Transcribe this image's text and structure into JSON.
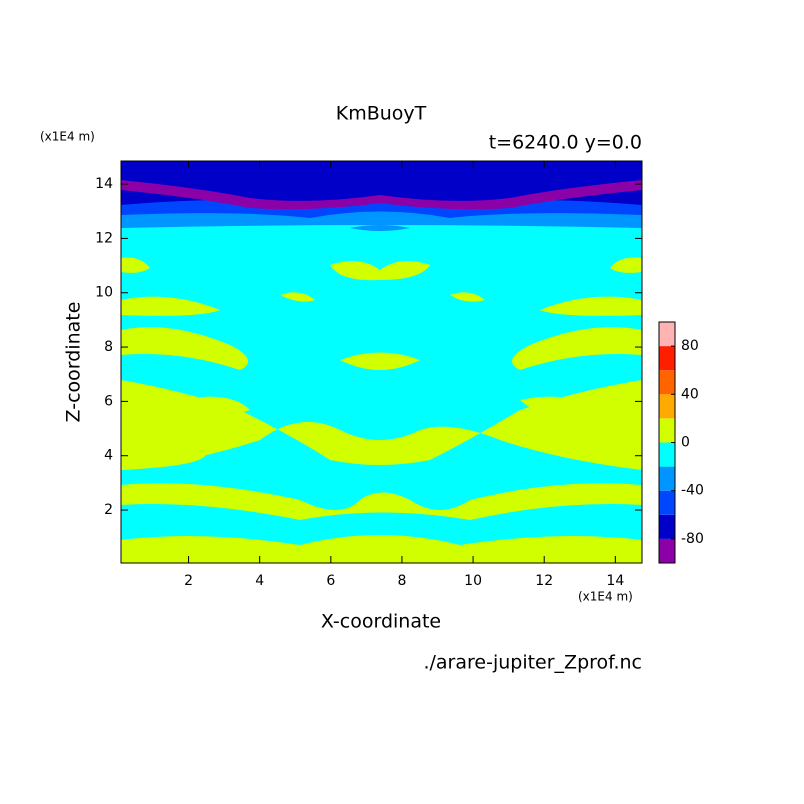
{
  "chart_data": {
    "type": "contour",
    "title": "KmBuoyT",
    "subtitle": "t=6240.0 y=0.0",
    "x_label": "X-coordinate",
    "y_label": "Z-coordinate",
    "x_unit": "(x1E4 m)",
    "y_unit": "(x1E4 m)",
    "source": "./arare-jupiter_Zprof.nc",
    "xlim": [
      0.1,
      14.75
    ],
    "ylim": [
      0.05,
      14.85
    ],
    "xticks": [
      2,
      4,
      6,
      8,
      10,
      12,
      14
    ],
    "yticks": [
      2,
      4,
      6,
      8,
      10,
      12,
      14
    ],
    "colorbar": {
      "levels": [
        -100,
        -80,
        -60,
        -40,
        -20,
        0,
        20,
        40,
        60,
        80,
        100
      ],
      "colors": [
        "#8c00a8",
        "#0000c8",
        "#0046ff",
        "#0096ff",
        "#00ffff",
        "#d2ff00",
        "#ffaa00",
        "#ff6400",
        "#ff1e00",
        "#ffb4b4"
      ],
      "ticks": [
        -80,
        -40,
        0,
        40,
        80
      ]
    }
  }
}
